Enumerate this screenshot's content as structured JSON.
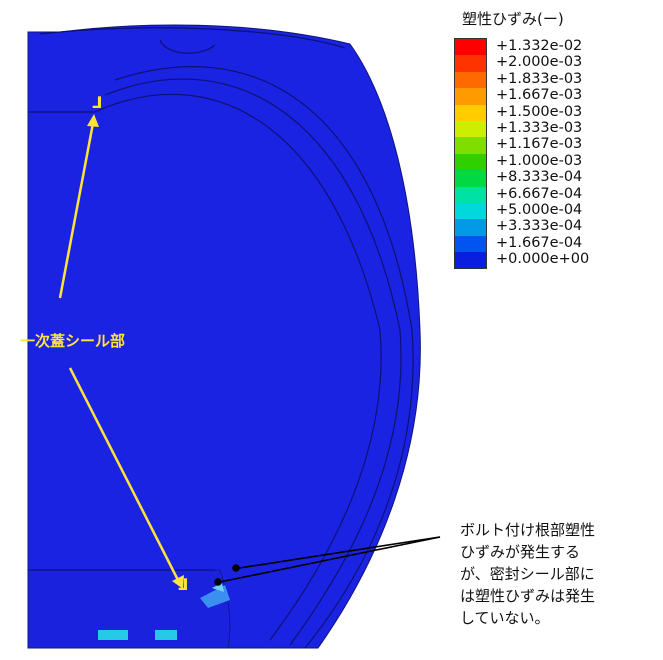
{
  "legend": {
    "title": "塑性ひずみ(ー)",
    "entries": [
      {
        "label": "+1.332e-02",
        "color": "#ff0000"
      },
      {
        "label": "+2.000e-03",
        "color": "#ff3300"
      },
      {
        "label": "+1.833e-03",
        "color": "#ff6a00"
      },
      {
        "label": "+1.667e-03",
        "color": "#ff9a00"
      },
      {
        "label": "+1.500e-03",
        "color": "#ffcc00"
      },
      {
        "label": "+1.333e-03",
        "color": "#ccee00"
      },
      {
        "label": "+1.167e-03",
        "color": "#7fdd00"
      },
      {
        "label": "+1.000e-03",
        "color": "#2ed000"
      },
      {
        "label": "+8.333e-04",
        "color": "#00d946"
      },
      {
        "label": "+6.667e-04",
        "color": "#00e1a3"
      },
      {
        "label": "+5.000e-04",
        "color": "#00d8dc"
      },
      {
        "label": "+3.333e-04",
        "color": "#009ae6"
      },
      {
        "label": "+1.667e-04",
        "color": "#0055f0"
      },
      {
        "label": "+0.000e+00",
        "color": "#0a1ee0"
      }
    ]
  },
  "annotations": {
    "seal_label": "一次蓋シール部",
    "note_lines": [
      "ボルト付け根部塑性",
      "ひずみが発生する",
      "が、密封シール部に",
      "は塑性ひずみは発生",
      "していない。"
    ]
  },
  "colors": {
    "model_blue": "#1b23e2",
    "arrow_yellow": "#ffe23a"
  }
}
